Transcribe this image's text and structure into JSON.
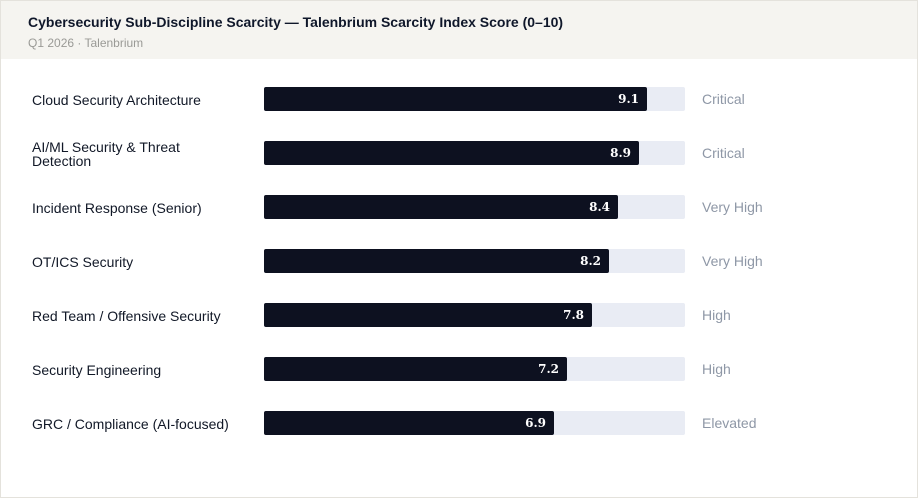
{
  "chart_data": {
    "type": "bar",
    "orientation": "horizontal",
    "title": "Cybersecurity Sub-Discipline Scarcity — Talenbrium Scarcity Index Score (0–10)",
    "subtitle": "Q1 2026 · Talenbrium",
    "xlim": [
      0,
      10
    ],
    "categories": [
      "Cloud Security Architecture",
      "AI/ML Security & Threat Detection",
      "Incident Response (Senior)",
      "OT/ICS Security",
      "Red Team / Offensive Security",
      "Security Engineering",
      "GRC / Compliance (AI-focused)"
    ],
    "values": [
      9.1,
      8.9,
      8.4,
      8.2,
      7.8,
      7.2,
      6.9
    ],
    "value_labels": [
      "9.1",
      "8.9",
      "8.4",
      "8.2",
      "7.8",
      "7.2",
      "6.9"
    ],
    "tiers": [
      "Critical",
      "Critical",
      "Very High",
      "Very High",
      "High",
      "High",
      "Elevated"
    ],
    "colors": {
      "bar": "#0d1120",
      "track": "#e9ecf4",
      "tier_text": "#8e97a6",
      "header_bg": "#f5f4f0"
    }
  }
}
